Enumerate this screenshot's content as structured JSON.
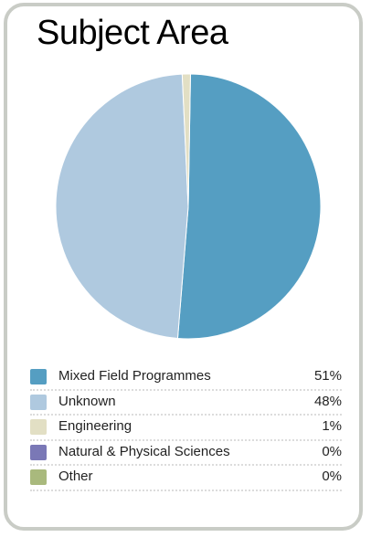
{
  "chart_data": {
    "type": "pie",
    "title": "Subject Area",
    "slices": [
      {
        "label": "Mixed Field Programmes",
        "value": 51,
        "display": "51%",
        "color": "#559ec2"
      },
      {
        "label": "Unknown",
        "value": 48,
        "display": "48%",
        "color": "#afc9df"
      },
      {
        "label": "Engineering",
        "value": 1,
        "display": "1%",
        "color": "#e2dfc4"
      },
      {
        "label": "Natural & Physical Sciences",
        "value": 0,
        "display": "0%",
        "color": "#7a78b6"
      },
      {
        "label": "Other",
        "value": 0,
        "display": "0%",
        "color": "#a9b97d"
      }
    ],
    "legend_position": "bottom"
  }
}
